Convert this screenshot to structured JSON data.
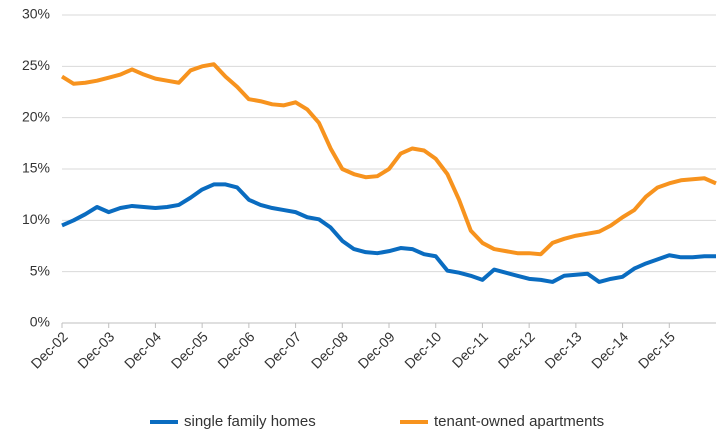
{
  "chart_data": {
    "type": "line",
    "categories": [
      "Dec-02",
      null,
      null,
      null,
      "Dec-03",
      null,
      null,
      null,
      "Dec-04",
      null,
      null,
      null,
      "Dec-05",
      null,
      null,
      null,
      "Dec-06",
      null,
      null,
      null,
      "Dec-07",
      null,
      null,
      null,
      "Dec-08",
      null,
      null,
      null,
      "Dec-09",
      null,
      null,
      null,
      "Dec-10",
      null,
      null,
      null,
      "Dec-11",
      null,
      null,
      null,
      "Dec-12",
      null,
      null,
      null,
      "Dec-13",
      null,
      null,
      null,
      "Dec-14",
      null,
      null,
      null,
      "Dec-15",
      null,
      null,
      null,
      null
    ],
    "series": [
      {
        "name": "single family homes",
        "color": "#0a6cc0",
        "values": [
          9.5,
          10.0,
          10.6,
          11.3,
          10.8,
          11.2,
          11.4,
          11.3,
          11.2,
          11.3,
          11.5,
          12.2,
          13.0,
          13.5,
          13.5,
          13.2,
          12.0,
          11.5,
          11.2,
          11.0,
          10.8,
          10.3,
          10.1,
          9.3,
          8.0,
          7.2,
          6.9,
          6.8,
          7.0,
          7.3,
          7.2,
          6.7,
          6.5,
          5.1,
          4.9,
          4.6,
          4.2,
          5.2,
          4.9,
          4.6,
          4.3,
          4.2,
          4.0,
          4.6,
          4.7,
          4.8,
          4.0,
          4.3,
          4.5,
          5.3,
          5.8,
          6.2,
          6.6,
          6.4,
          6.4,
          6.5,
          6.5
        ]
      },
      {
        "name": "tenant-owned apartments",
        "color": "#f7931e",
        "values": [
          24.0,
          23.3,
          23.4,
          23.6,
          23.9,
          24.2,
          24.7,
          24.2,
          23.8,
          23.6,
          23.4,
          24.6,
          25.0,
          25.2,
          24.0,
          23.0,
          21.8,
          21.6,
          21.3,
          21.2,
          21.5,
          20.8,
          19.5,
          17.0,
          15.0,
          14.5,
          14.2,
          14.3,
          15.0,
          16.5,
          17.0,
          16.8,
          16.0,
          14.5,
          12.0,
          9.0,
          7.8,
          7.2,
          7.0,
          6.8,
          6.8,
          6.7,
          7.8,
          8.2,
          8.5,
          8.7,
          8.9,
          9.5,
          10.3,
          11.0,
          12.3,
          13.2,
          13.6,
          13.9,
          14.0,
          14.1,
          13.6
        ]
      }
    ],
    "ylim": [
      0,
      30
    ],
    "yticks": [
      {
        "value": 0,
        "label": "0%"
      },
      {
        "value": 5,
        "label": "5%"
      },
      {
        "value": 10,
        "label": "10%"
      },
      {
        "value": 15,
        "label": "15%"
      },
      {
        "value": 20,
        "label": "20%"
      },
      {
        "value": 25,
        "label": "25%"
      },
      {
        "value": 30,
        "label": "30%"
      }
    ],
    "grid": true,
    "legend": "bottom"
  }
}
